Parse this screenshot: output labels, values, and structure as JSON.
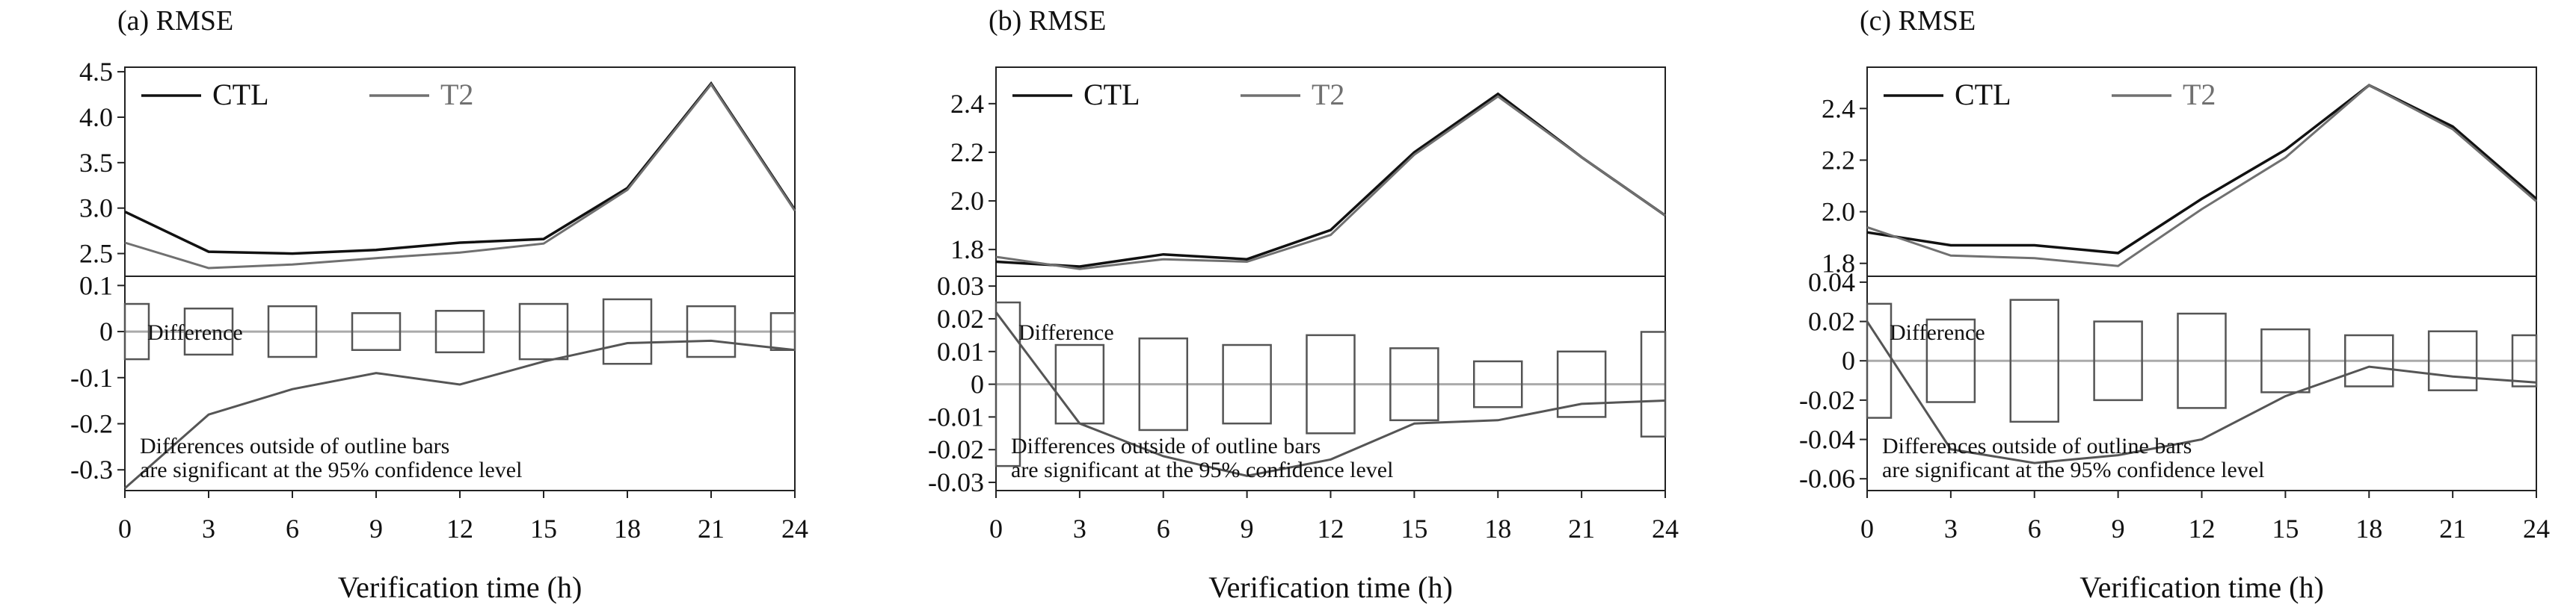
{
  "chart_data": [
    {
      "type": "line",
      "title": "(a) RMSE",
      "xlabel": "Verification time (h)",
      "x": [
        0,
        3,
        6,
        9,
        12,
        15,
        18,
        21,
        24
      ],
      "x_tick_labels": [
        "0",
        "3",
        "6",
        "9",
        "12",
        "15",
        "18",
        "21",
        "24"
      ],
      "rmse": {
        "ylim": [
          2.25,
          4.55
        ],
        "y_ticks": [
          2.5,
          3.0,
          3.5,
          4.0,
          4.5
        ],
        "y_tick_labels": [
          "2.5",
          "3.0",
          "3.5",
          "4.0",
          "4.5"
        ],
        "series": [
          {
            "name": "CTL",
            "color": "#111111",
            "values": [
              2.96,
              2.52,
              2.5,
              2.54,
              2.62,
              2.66,
              3.22,
              4.37,
              2.98
            ]
          },
          {
            "name": "T2",
            "color": "#707070",
            "values": [
              2.62,
              2.34,
              2.38,
              2.45,
              2.51,
              2.61,
              3.2,
              4.36,
              2.97
            ]
          }
        ]
      },
      "difference": {
        "label": "Difference",
        "ylim": [
          -0.345,
          0.12
        ],
        "y_ticks": [
          0.1,
          0,
          -0.1,
          -0.2,
          -0.3
        ],
        "y_tick_labels": [
          "0.1",
          "0",
          "-0.1",
          "-0.2",
          "-0.3"
        ],
        "values": [
          -0.34,
          -0.18,
          -0.125,
          -0.09,
          -0.115,
          -0.065,
          -0.025,
          -0.02,
          -0.04
        ],
        "conf_bars": [
          0.06,
          0.05,
          0.055,
          0.04,
          0.045,
          0.06,
          0.07,
          0.055,
          0.04
        ],
        "note_line1": "Differences outside of outline bars",
        "note_line2": "are significant at the 95% confidence level"
      }
    },
    {
      "type": "line",
      "title": "(b) RMSE",
      "xlabel": "Verification time (h)",
      "x": [
        0,
        3,
        6,
        9,
        12,
        15,
        18,
        21,
        24
      ],
      "x_tick_labels": [
        "0",
        "3",
        "6",
        "9",
        "12",
        "15",
        "18",
        "21",
        "24"
      ],
      "rmse": {
        "ylim": [
          1.69,
          2.55
        ],
        "y_ticks": [
          1.8,
          2.0,
          2.2,
          2.4
        ],
        "y_tick_labels": [
          "1.8",
          "2.0",
          "2.2",
          "2.4"
        ],
        "series": [
          {
            "name": "CTL",
            "color": "#111111",
            "values": [
              1.75,
              1.73,
              1.78,
              1.76,
              1.88,
              2.2,
              2.44,
              2.18,
              1.94
            ]
          },
          {
            "name": "T2",
            "color": "#707070",
            "values": [
              1.77,
              1.72,
              1.76,
              1.75,
              1.86,
              2.19,
              2.43,
              2.18,
              1.94
            ]
          }
        ]
      },
      "difference": {
        "label": "Difference",
        "ylim": [
          -0.0325,
          0.033
        ],
        "y_ticks": [
          0.03,
          0.02,
          0.01,
          0,
          -0.01,
          -0.02,
          -0.03
        ],
        "y_tick_labels": [
          "0.03",
          "0.02",
          "0.01",
          "0",
          "-0.01",
          "-0.02",
          "-0.03"
        ],
        "values": [
          0.022,
          -0.012,
          -0.022,
          -0.028,
          -0.023,
          -0.012,
          -0.011,
          -0.006,
          -0.005
        ],
        "conf_bars": [
          0.025,
          0.012,
          0.014,
          0.012,
          0.015,
          0.011,
          0.007,
          0.01,
          0.016
        ],
        "note_line1": "Differences outside of outline bars",
        "note_line2": "are significant at the 95% confidence level"
      }
    },
    {
      "type": "line",
      "title": "(c) RMSE",
      "xlabel": "Verification time (h)",
      "x": [
        0,
        3,
        6,
        9,
        12,
        15,
        18,
        21,
        24
      ],
      "x_tick_labels": [
        "0",
        "3",
        "6",
        "9",
        "12",
        "15",
        "18",
        "21",
        "24"
      ],
      "rmse": {
        "ylim": [
          1.75,
          2.56
        ],
        "y_ticks": [
          1.8,
          2.0,
          2.2,
          2.4
        ],
        "y_tick_labels": [
          "1.8",
          "2.0",
          "2.2",
          "2.4"
        ],
        "series": [
          {
            "name": "CTL",
            "color": "#111111",
            "values": [
              1.92,
              1.87,
              1.87,
              1.84,
              2.05,
              2.24,
              2.49,
              2.33,
              2.05
            ]
          },
          {
            "name": "T2",
            "color": "#707070",
            "values": [
              1.94,
              1.83,
              1.82,
              1.79,
              2.01,
              2.21,
              2.49,
              2.32,
              2.04
            ]
          }
        ]
      },
      "difference": {
        "label": "Difference",
        "ylim": [
          -0.066,
          0.043
        ],
        "y_ticks": [
          0.04,
          0.02,
          0,
          -0.02,
          -0.04,
          -0.06
        ],
        "y_tick_labels": [
          "0.04",
          "0.02",
          "0",
          "-0.02",
          "-0.04",
          "-0.06"
        ],
        "values": [
          0.02,
          -0.045,
          -0.052,
          -0.048,
          -0.04,
          -0.018,
          -0.003,
          -0.008,
          -0.011
        ],
        "conf_bars": [
          0.029,
          0.021,
          0.031,
          0.02,
          0.024,
          0.016,
          0.013,
          0.015,
          0.013
        ],
        "note_line1": "Differences outside of outline bars",
        "note_line2": "are significant at the 95% confidence level"
      }
    }
  ]
}
